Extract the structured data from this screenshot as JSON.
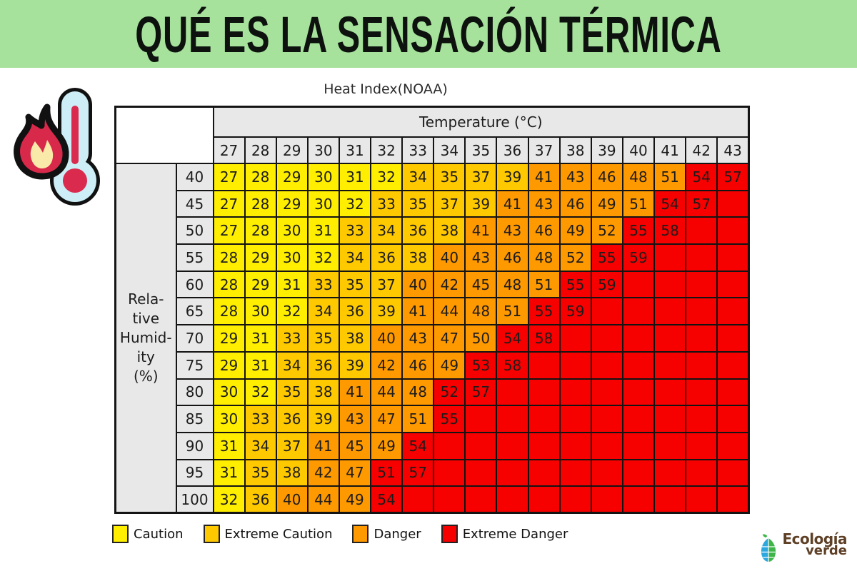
{
  "page": {
    "title": "QUÉ ES LA SENSACIÓN TÉRMICA",
    "band_color": "#a7e29d"
  },
  "chart": {
    "title": "Heat Index(NOAA)",
    "col_group_label": "Temperature (°C)",
    "row_group_label_lines": [
      "Rela-",
      "tive",
      "Humid-",
      "ity",
      "(%)"
    ]
  },
  "chart_data": {
    "type": "heatmap",
    "title": "Heat Index(NOAA)",
    "xlabel": "Temperature (°C)",
    "ylabel": "Relative Humidity (%)",
    "x_temperatures_c": [
      27,
      28,
      29,
      30,
      31,
      32,
      33,
      34,
      35,
      36,
      37,
      38,
      39,
      40,
      41,
      42,
      43
    ],
    "y_relative_humidity_pct": [
      40,
      45,
      50,
      55,
      60,
      65,
      70,
      75,
      80,
      85,
      90,
      95,
      100
    ],
    "zone_codes": {
      "c": "Caution",
      "e": "Extreme Caution",
      "d": "Danger",
      "x": "Extreme Danger"
    },
    "matrix": [
      {
        "humidity": 40,
        "values": [
          27,
          28,
          29,
          30,
          31,
          32,
          34,
          35,
          37,
          39,
          41,
          43,
          46,
          48,
          51,
          54,
          57
        ],
        "zones": "cccccceeeedddddxx"
      },
      {
        "humidity": 45,
        "values": [
          27,
          28,
          29,
          30,
          32,
          33,
          35,
          37,
          39,
          41,
          43,
          46,
          49,
          51,
          54,
          57,
          null
        ],
        "zones": "ccccceeeedddddxxx"
      },
      {
        "humidity": 50,
        "values": [
          27,
          28,
          30,
          31,
          33,
          34,
          36,
          38,
          41,
          43,
          46,
          49,
          52,
          55,
          58,
          null,
          null
        ],
        "zones": "cccceeeedddddxxxx"
      },
      {
        "humidity": 55,
        "values": [
          28,
          29,
          30,
          32,
          34,
          36,
          38,
          40,
          43,
          46,
          48,
          52,
          55,
          59,
          null,
          null,
          null
        ],
        "zones": "cccceeedddddxxxxx"
      },
      {
        "humidity": 60,
        "values": [
          28,
          29,
          31,
          33,
          35,
          37,
          40,
          42,
          45,
          48,
          51,
          55,
          59,
          null,
          null,
          null,
          null
        ],
        "zones": "ccceeedddddxxxxxx"
      },
      {
        "humidity": 65,
        "values": [
          28,
          30,
          32,
          34,
          36,
          39,
          41,
          44,
          48,
          51,
          55,
          59,
          null,
          null,
          null,
          null,
          null
        ],
        "zones": "ccceeeddddxxxxxxx"
      },
      {
        "humidity": 70,
        "values": [
          29,
          31,
          33,
          35,
          38,
          40,
          43,
          47,
          50,
          54,
          58,
          null,
          null,
          null,
          null,
          null,
          null
        ],
        "zones": "cceeeddddxxxxxxxx"
      },
      {
        "humidity": 75,
        "values": [
          29,
          31,
          34,
          36,
          39,
          42,
          46,
          49,
          53,
          58,
          null,
          null,
          null,
          null,
          null,
          null,
          null
        ],
        "zones": "cceeedddxxxxxxxxx"
      },
      {
        "humidity": 80,
        "values": [
          30,
          32,
          35,
          38,
          41,
          44,
          48,
          52,
          57,
          null,
          null,
          null,
          null,
          null,
          null,
          null,
          null
        ],
        "zones": "cceedddxxxxxxxxxx"
      },
      {
        "humidity": 85,
        "values": [
          30,
          33,
          36,
          39,
          43,
          47,
          51,
          55,
          null,
          null,
          null,
          null,
          null,
          null,
          null,
          null,
          null
        ],
        "zones": "ceeedddxxxxxxxxxx"
      },
      {
        "humidity": 90,
        "values": [
          31,
          34,
          37,
          41,
          45,
          49,
          54,
          null,
          null,
          null,
          null,
          null,
          null,
          null,
          null,
          null,
          null
        ],
        "zones": "ceedddxxxxxxxxxxx"
      },
      {
        "humidity": 95,
        "values": [
          31,
          35,
          38,
          42,
          47,
          51,
          57,
          null,
          null,
          null,
          null,
          null,
          null,
          null,
          null,
          null,
          null
        ],
        "zones": "ceeddxxxxxxxxxxxx"
      },
      {
        "humidity": 100,
        "values": [
          32,
          36,
          40,
          44,
          49,
          54,
          null,
          null,
          null,
          null,
          null,
          null,
          null,
          null,
          null,
          null,
          null
        ],
        "zones": "cedddxxxxxxxxxxxx"
      }
    ],
    "legend_position": "bottom",
    "grid": true
  },
  "legend": {
    "items": [
      {
        "key": "c",
        "label": "Caution",
        "color": "#ffee00"
      },
      {
        "key": "e",
        "label": "Extreme Caution",
        "color": "#ffc900"
      },
      {
        "key": "d",
        "label": "Danger",
        "color": "#ff9900"
      },
      {
        "key": "x",
        "label": "Extreme Danger",
        "color": "#f60000"
      }
    ]
  },
  "logo": {
    "brand_line1": "Ecología",
    "brand_line2": "verde"
  },
  "icons": {
    "left_graphic": "flame-thermometer-icon",
    "logo_mark": "leaf-icon"
  },
  "colors": {
    "header_cell_bg": "#e8e8e8",
    "table_border": "#141414",
    "band_green": "#a7e29d"
  }
}
